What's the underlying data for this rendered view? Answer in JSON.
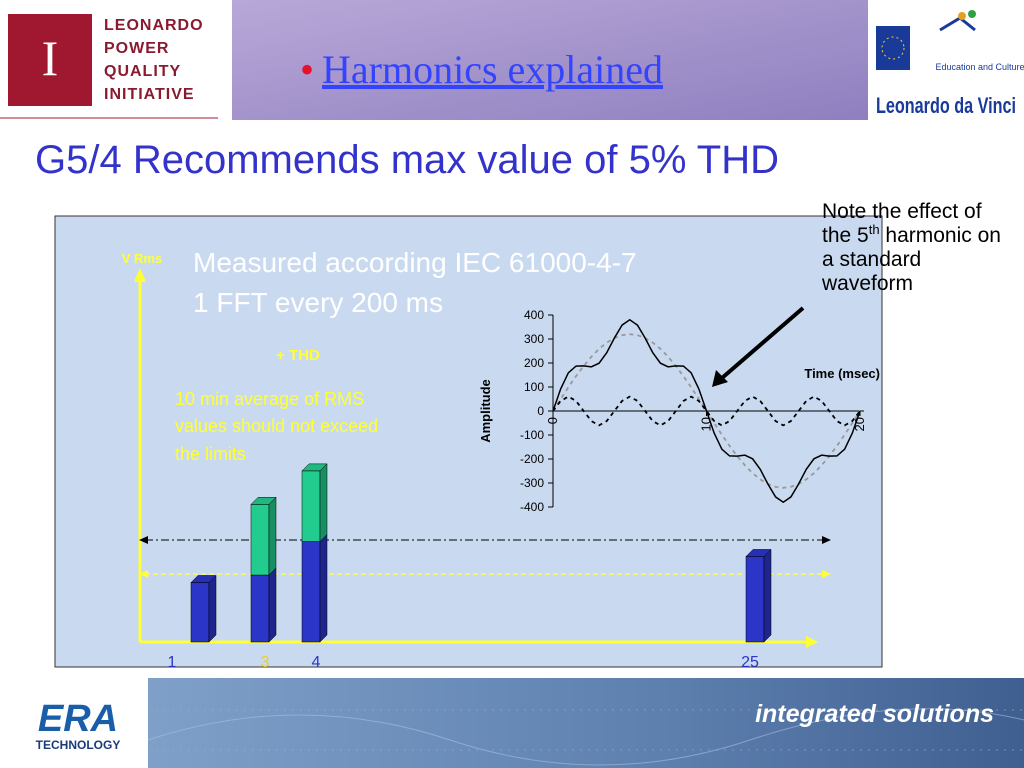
{
  "header": {
    "logo_lines": [
      "LEONARDO",
      "POWER",
      "QUALITY",
      "INITIATIVE"
    ],
    "banner_bullet": "•",
    "banner_title": "Harmonics explained",
    "eu_caption": "Education and Culture",
    "programme": "Leonardo da Vinci"
  },
  "slide_title": "G5/4 Recommends max value of 5% THD",
  "note": {
    "before": "Note the effect of the 5",
    "sup": "th",
    "after": " harmonic on a standard waveform"
  },
  "spectrum": {
    "type": "bar",
    "axis_label": "V Rms",
    "text_lines": [
      "Measured according IEC 61000-4-7",
      "1 FFT every 200 ms"
    ],
    "thd_label": "+ THD",
    "limit_note": [
      "10 min average of RMS",
      "values should not exceed",
      "the limits"
    ],
    "categories": [
      "1",
      "3",
      "4",
      "25"
    ],
    "ylim": [
      0,
      10
    ],
    "series": [
      {
        "color": "#2b35c8",
        "values": [
          1.6,
          1.8,
          2.7,
          2.3
        ]
      },
      {
        "color": "#22cc8e",
        "values": [
          null,
          1.9,
          1.9,
          null
        ]
      }
    ]
  },
  "waveform": {
    "type": "line",
    "ylabel": "Amplitude",
    "xlabel": "Time (msec)",
    "ylim": [
      -400,
      400
    ],
    "yticks": [
      400,
      300,
      200,
      100,
      0,
      -100,
      -200,
      -300,
      -400
    ],
    "xlim": [
      0,
      20
    ],
    "xticks": [
      0,
      10,
      20
    ],
    "x": [
      0,
      0.5,
      1,
      1.5,
      2,
      2.5,
      3,
      3.5,
      4,
      4.5,
      5,
      5.5,
      6,
      6.5,
      7,
      7.5,
      8,
      8.5,
      9,
      9.5,
      10,
      10.5,
      11,
      11.5,
      12,
      12.5,
      13,
      13.5,
      14,
      14.5,
      15,
      15.5,
      16,
      16.5,
      17,
      17.5,
      18,
      18.5,
      19,
      19.5,
      20
    ],
    "series": [
      {
        "color": "#999999",
        "dash": true,
        "values": [
          0,
          50,
          99,
          145,
          188,
          226,
          259,
          285,
          304,
          316,
          320,
          316,
          304,
          285,
          259,
          226,
          188,
          145,
          99,
          50,
          0,
          -50,
          -99,
          -145,
          -188,
          -226,
          -259,
          -285,
          -304,
          -316,
          -320,
          -316,
          -304,
          -285,
          -259,
          -226,
          -188,
          -145,
          -99,
          -50,
          0
        ]
      },
      {
        "color": "#000000",
        "dash": true,
        "values": [
          0,
          42,
          60,
          42,
          0,
          -42,
          -60,
          -42,
          0,
          42,
          60,
          42,
          0,
          -42,
          -60,
          -42,
          0,
          42,
          60,
          42,
          0,
          -42,
          -60,
          -42,
          0,
          42,
          60,
          42,
          0,
          -42,
          -60,
          -42,
          0,
          42,
          60,
          42,
          0,
          -42,
          -60,
          -42,
          0
        ]
      },
      {
        "color": "#000000",
        "dash": false,
        "values": [
          0,
          92,
          159,
          187,
          188,
          184,
          199,
          243,
          304,
          358,
          380,
          358,
          304,
          243,
          199,
          184,
          188,
          187,
          159,
          92,
          0,
          -92,
          -159,
          -187,
          -188,
          -184,
          -199,
          -243,
          -304,
          -358,
          -380,
          -358,
          -304,
          -243,
          -199,
          -184,
          -188,
          -187,
          -159,
          -92,
          0
        ]
      }
    ]
  },
  "footer": {
    "logo": "ERA",
    "logo_sub": "TECHNOLOGY",
    "slogan": "integrated solutions"
  }
}
